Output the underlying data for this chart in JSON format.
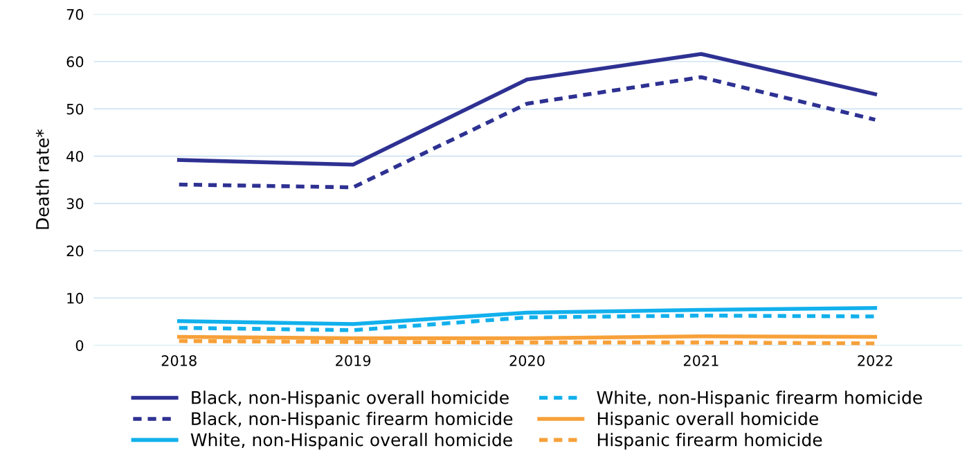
{
  "chart_data": {
    "type": "line",
    "ylabel": "Death rate*",
    "categories": [
      "2018",
      "2019",
      "2020",
      "2021",
      "2022"
    ],
    "ylim": [
      0,
      70
    ],
    "yticks": [
      0,
      10,
      20,
      30,
      40,
      50,
      60,
      70
    ],
    "grid": "y",
    "legend": "bottom",
    "series": [
      {
        "name": "Black, non-Hispanic overall homicide",
        "color": "#2e3192",
        "line_style": "solid",
        "values": [
          39.2,
          38.2,
          56.2,
          61.6,
          53.1
        ]
      },
      {
        "name": "Black, non-Hispanic firearm homicide",
        "color": "#2e3192",
        "line_style": "dashed",
        "values": [
          34.0,
          33.4,
          51.1,
          56.7,
          47.7
        ]
      },
      {
        "name": "White, non-Hispanic overall homicide",
        "color": "#12b0ec",
        "line_style": "solid",
        "values": [
          5.1,
          4.5,
          6.9,
          7.5,
          7.9
        ]
      },
      {
        "name": "White, non-Hispanic firearm homicide",
        "color": "#12b0ec",
        "line_style": "dashed",
        "values": [
          3.7,
          3.2,
          5.9,
          6.3,
          6.1
        ]
      },
      {
        "name": "Hispanic overall homicide",
        "color": "#f7a13a",
        "line_style": "solid",
        "values": [
          1.8,
          1.5,
          1.5,
          1.9,
          1.8
        ]
      },
      {
        "name": "Hispanic firearm homicide",
        "color": "#f7a13a",
        "line_style": "dashed",
        "values": [
          0.9,
          0.7,
          0.6,
          0.6,
          0.4
        ]
      }
    ]
  }
}
